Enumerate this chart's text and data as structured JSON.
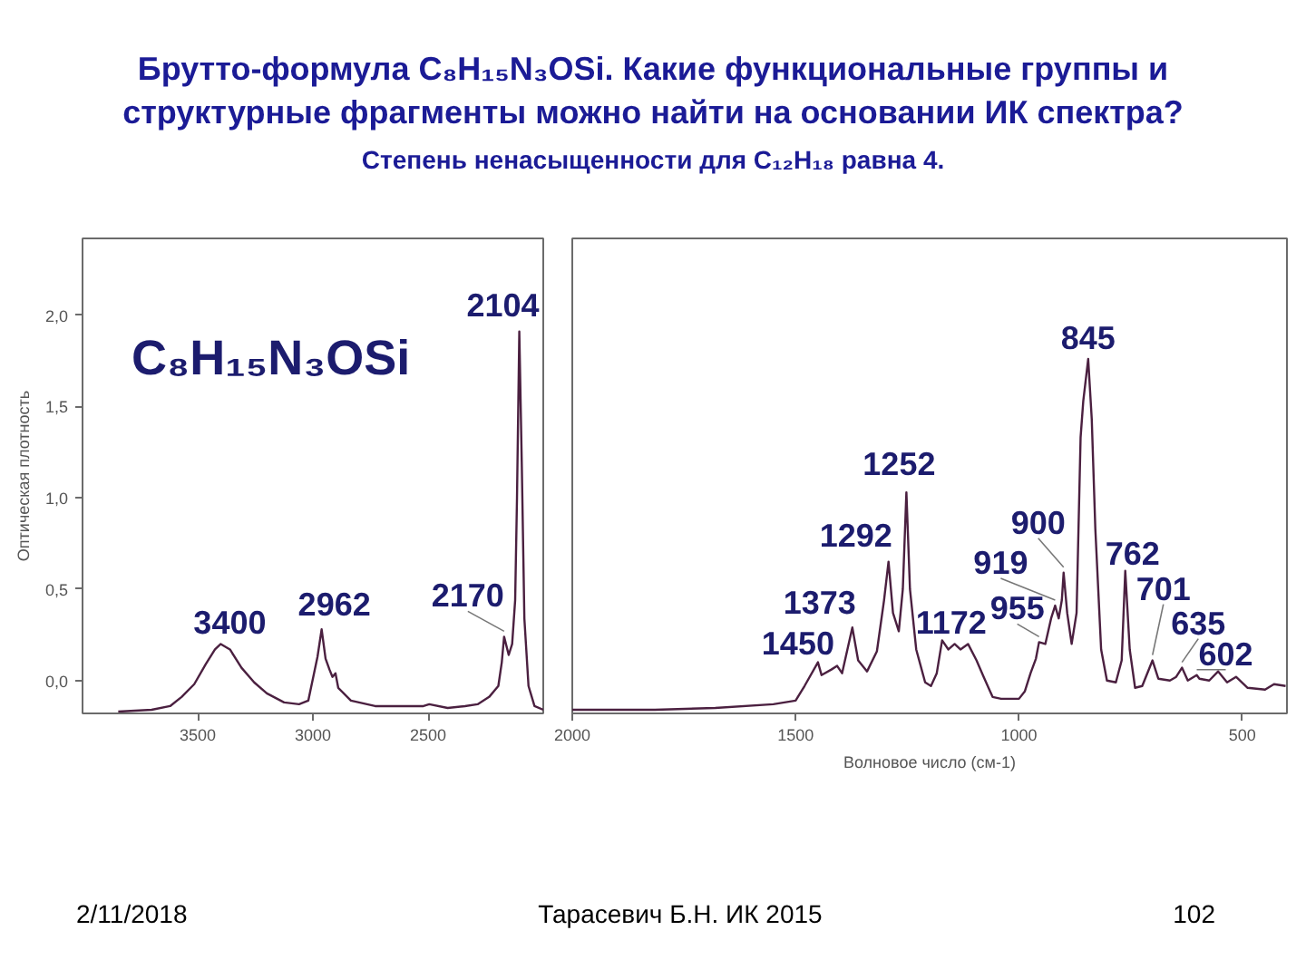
{
  "chart_data": [
    {
      "type": "line",
      "title": "Брутто-формула C₈H₁₅N₃OSi. Какие функциональные группы и структурные фрагменты можно найти на основании ИК спектра?",
      "subtitle": "Степень ненасыщенности для C₁₂H₁₈ равна 4.",
      "ylabel": "Оптическая плотность",
      "x": [
        3845,
        3700,
        3620,
        3570,
        3515,
        3465,
        3425,
        3400,
        3360,
        3310,
        3255,
        3200,
        3125,
        3060,
        3020,
        3000,
        2980,
        2962,
        2945,
        2928,
        2915,
        2902,
        2890,
        2835,
        2730,
        2620,
        2520,
        2495,
        2415,
        2340,
        2285,
        2235,
        2195,
        2180,
        2170,
        2150,
        2135,
        2122,
        2114,
        2104,
        2093,
        2082,
        2064,
        2038,
        2000
      ],
      "series": [
        {
          "color": "#4b2040",
          "values": [
            -0.17,
            -0.16,
            -0.14,
            -0.09,
            -0.02,
            0.09,
            0.17,
            0.2,
            0.17,
            0.07,
            -0.01,
            -0.07,
            -0.12,
            -0.13,
            -0.11,
            0.01,
            0.13,
            0.28,
            0.12,
            0.06,
            0.02,
            0.04,
            -0.04,
            -0.11,
            -0.14,
            -0.14,
            -0.14,
            -0.13,
            -0.15,
            -0.14,
            -0.13,
            -0.09,
            -0.03,
            0.1,
            0.24,
            0.14,
            0.2,
            0.44,
            1.0,
            1.91,
            1.17,
            0.34,
            -0.03,
            -0.14,
            -0.16
          ]
        }
      ],
      "xlim": [
        4000,
        2000
      ],
      "xticks": [
        3500,
        3000,
        2500
      ],
      "ylim": [
        -0.18,
        2.42
      ],
      "yticks": [
        {
          "value": 0,
          "label": "0,0"
        },
        {
          "value": 0.5,
          "label": "0,5"
        },
        {
          "value": 1,
          "label": "1,0"
        },
        {
          "value": 1.5,
          "label": "1,5"
        },
        {
          "value": 2,
          "label": "2,0"
        }
      ],
      "annotations": [
        "C₈H₁₅N₃OSi",
        {
          "text": "3400",
          "x": 3400,
          "y": 0.2
        },
        {
          "text": "2962",
          "x": 2962,
          "y": 0.28
        },
        {
          "text": "2170",
          "x": 2170,
          "y": 0.24
        },
        {
          "text": "2104",
          "x": 2104,
          "y": 1.91
        }
      ]
    },
    {
      "type": "line",
      "xlabel": "Волновое число (см-1)",
      "x": [
        2000,
        1815,
        1680,
        1550,
        1500,
        1480,
        1450,
        1442,
        1420,
        1407,
        1396,
        1373,
        1360,
        1340,
        1318,
        1302,
        1292,
        1282,
        1269,
        1260,
        1252,
        1244,
        1230,
        1210,
        1197,
        1184,
        1172,
        1158,
        1144,
        1131,
        1114,
        1095,
        1079,
        1059,
        1040,
        1000,
        987,
        974,
        962,
        955,
        941,
        928,
        919,
        911,
        904,
        900,
        892,
        882,
        871,
        862,
        856,
        845,
        837,
        829,
        816,
        803,
        783,
        770,
        762,
        752,
        740,
        724,
        701,
        688,
        662,
        648,
        635,
        622,
        602,
        596,
        574,
        554,
        534,
        514,
        488,
        449,
        429,
        403
      ],
      "series": [
        {
          "color": "#4b2040",
          "values": [
            -0.16,
            -0.16,
            -0.15,
            -0.13,
            -0.11,
            -0.03,
            0.1,
            0.03,
            0.06,
            0.08,
            0.04,
            0.29,
            0.11,
            0.05,
            0.16,
            0.44,
            0.65,
            0.37,
            0.27,
            0.5,
            1.03,
            0.5,
            0.17,
            -0.01,
            -0.03,
            0.04,
            0.22,
            0.17,
            0.2,
            0.17,
            0.2,
            0.11,
            0.02,
            -0.09,
            -0.1,
            -0.1,
            -0.06,
            0.04,
            0.12,
            0.21,
            0.2,
            0.34,
            0.41,
            0.34,
            0.44,
            0.59,
            0.37,
            0.2,
            0.37,
            1.33,
            1.53,
            1.76,
            1.43,
            0.83,
            0.17,
            0.0,
            -0.01,
            0.11,
            0.6,
            0.17,
            -0.04,
            -0.03,
            0.11,
            0.01,
            0.0,
            0.02,
            0.07,
            0.0,
            0.03,
            0.01,
            0.0,
            0.05,
            -0.01,
            0.02,
            -0.04,
            -0.05,
            -0.02,
            -0.03
          ]
        }
      ],
      "xlim": [
        2000,
        400
      ],
      "xticks": [
        2000,
        1500,
        1000,
        500
      ],
      "ylim": [
        -0.18,
        2.42
      ],
      "tick_labels": "x",
      "annotations": [
        {
          "text": "1450",
          "x": 1450,
          "y": 0.1
        },
        {
          "text": "1373",
          "x": 1373,
          "y": 0.29
        },
        {
          "text": "1292",
          "x": 1292,
          "y": 0.65
        },
        {
          "text": "1252",
          "x": 1252,
          "y": 1.03
        },
        {
          "text": "1172",
          "x": 1172,
          "y": 0.22
        },
        {
          "text": "955",
          "x": 955,
          "y": 0.21
        },
        {
          "text": "919",
          "x": 919,
          "y": 0.41
        },
        {
          "text": "900",
          "x": 900,
          "y": 0.59
        },
        {
          "text": "845",
          "x": 845,
          "y": 1.76
        },
        {
          "text": "762",
          "x": 762,
          "y": 0.6
        },
        {
          "text": "701",
          "x": 701,
          "y": 0.11
        },
        {
          "text": "635",
          "x": 635,
          "y": 0.07
        },
        {
          "text": "602",
          "x": 602,
          "y": 0.03
        },
        "2/11/2018",
        "Тарасевич Б.Н. ИК 2015",
        "102"
      ]
    }
  ]
}
